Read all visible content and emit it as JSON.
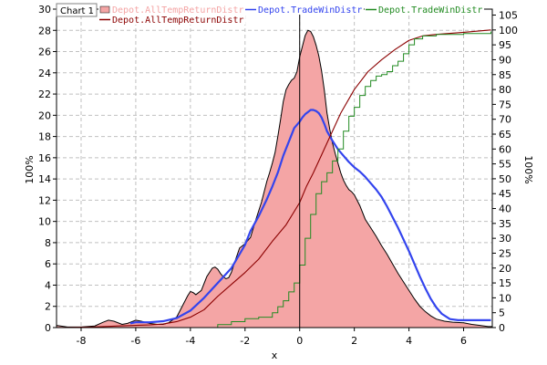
{
  "window": {
    "chart_tab_label": "Chart 1"
  },
  "chart_data": {
    "type": "area",
    "title": "",
    "xlabel": "x",
    "ylabel_left": "100%",
    "ylabel_right": "100%",
    "xlim": [
      -8.9,
      7.05
    ],
    "ylim_left": [
      0,
      30
    ],
    "ylim_right": [
      0,
      107
    ],
    "x_ticks": [
      -8,
      -6,
      -4,
      -2,
      0,
      2,
      4,
      6
    ],
    "y_ticks_left": [
      0,
      2,
      4,
      6,
      8,
      10,
      12,
      14,
      16,
      18,
      20,
      22,
      24,
      26,
      28,
      30
    ],
    "y_ticks_right": [
      0,
      5,
      10,
      15,
      20,
      25,
      30,
      35,
      40,
      45,
      50,
      55,
      60,
      65,
      70,
      75,
      80,
      85,
      90,
      95,
      100,
      105
    ],
    "grid": true,
    "legend_position": "top",
    "reference_line_x": 0,
    "colors": {
      "density_fill": "#f4a5a5",
      "density_line": "#000000",
      "all_temp_cdf": "#8b0000",
      "trade_win_density": "#3344ee",
      "trade_win_cdf": "#228b22",
      "grid": "#c0c0c0",
      "reference_line": "#000000"
    },
    "legend": [
      {
        "label": "Depot.AllTempReturnDistr",
        "style": "fill",
        "color": "#f4a5a5"
      },
      {
        "label": "Depot.TradeWinDistr",
        "style": "line",
        "color": "#3344ee"
      },
      {
        "label": "Depot.TradeWinDistr",
        "style": "line",
        "color": "#228b22"
      },
      {
        "label": "Depot.AllTempReturnDistr",
        "style": "line",
        "color": "#8b0000"
      }
    ],
    "series": [
      {
        "name": "Depot.AllTempReturnDistr",
        "kind": "area",
        "axis": "left",
        "x": [
          -8.9,
          -8.5,
          -8,
          -7.5,
          -7.2,
          -7,
          -6.8,
          -6.5,
          -6.3,
          -6,
          -5.8,
          -5.5,
          -5.2,
          -5,
          -4.8,
          -4.5,
          -4.3,
          -4.1,
          -4,
          -3.9,
          -3.8,
          -3.6,
          -3.4,
          -3.2,
          -3.1,
          -3,
          -2.9,
          -2.8,
          -2.7,
          -2.6,
          -2.5,
          -2.4,
          -2.2,
          -2,
          -1.8,
          -1.6,
          -1.4,
          -1.3,
          -1.2,
          -1.1,
          -1,
          -0.9,
          -0.8,
          -0.7,
          -0.6,
          -0.5,
          -0.4,
          -0.3,
          -0.2,
          -0.1,
          0,
          0.1,
          0.2,
          0.3,
          0.4,
          0.5,
          0.6,
          0.7,
          0.8,
          0.9,
          1,
          1.1,
          1.2,
          1.3,
          1.4,
          1.5,
          1.6,
          1.7,
          1.8,
          1.9,
          2,
          2.2,
          2.4,
          2.6,
          2.8,
          3,
          3.2,
          3.4,
          3.6,
          3.8,
          4,
          4.2,
          4.4,
          4.6,
          4.8,
          5,
          5.3,
          5.6,
          6,
          6.3,
          6.6,
          6.9,
          7.05
        ],
        "values": [
          0.2,
          0.05,
          0.05,
          0.15,
          0.5,
          0.7,
          0.6,
          0.3,
          0.4,
          0.7,
          0.6,
          0.4,
          0.3,
          0.3,
          0.45,
          1,
          2,
          3,
          3.4,
          3.3,
          3.1,
          3.5,
          4.8,
          5.6,
          5.7,
          5.5,
          5.1,
          4.8,
          4.6,
          4.7,
          5.2,
          6,
          7.5,
          7.9,
          8.5,
          10.2,
          11.8,
          12.8,
          13.8,
          14.6,
          15.5,
          16.5,
          18,
          19.6,
          21.3,
          22.4,
          22.9,
          23.3,
          23.5,
          24.1,
          25.5,
          26.5,
          27.5,
          28,
          27.9,
          27.4,
          26.6,
          25.6,
          24.2,
          22.4,
          20.2,
          18.7,
          17.4,
          16.4,
          15.5,
          14.6,
          13.9,
          13.4,
          13,
          12.8,
          12.5,
          11.5,
          10.2,
          9.4,
          8.6,
          7.7,
          6.9,
          6,
          5.1,
          4.3,
          3.5,
          2.7,
          2,
          1.5,
          1.1,
          0.8,
          0.6,
          0.5,
          0.45,
          0.3,
          0.2,
          0.1,
          0.1
        ]
      },
      {
        "name": "Depot.TradeWinDistr",
        "kind": "line",
        "axis": "left",
        "x": [
          -6.2,
          -6,
          -5.5,
          -5,
          -4.5,
          -4,
          -3.5,
          -3,
          -2.5,
          -2,
          -1.8,
          -1.5,
          -1.2,
          -1,
          -0.8,
          -0.6,
          -0.4,
          -0.2,
          0,
          0.1,
          0.2,
          0.3,
          0.4,
          0.5,
          0.6,
          0.7,
          0.8,
          0.9,
          1,
          1.2,
          1.4,
          1.6,
          1.8,
          2,
          2.2,
          2.4,
          2.6,
          2.8,
          3,
          3.2,
          3.4,
          3.6,
          3.8,
          4,
          4.2,
          4.4,
          4.6,
          4.8,
          5,
          5.2,
          5.5,
          5.8,
          6,
          6.2,
          6.5,
          6.8,
          7
        ],
        "values": [
          0.4,
          0.5,
          0.5,
          0.6,
          0.9,
          1.6,
          2.8,
          4.2,
          5.6,
          7.8,
          9.1,
          10.5,
          12.1,
          13.3,
          14.6,
          16.2,
          17.5,
          18.8,
          19.4,
          19.8,
          20.1,
          20.3,
          20.5,
          20.5,
          20.4,
          20.2,
          19.8,
          19.2,
          18.5,
          17.6,
          16.8,
          16.2,
          15.6,
          15.1,
          14.7,
          14.2,
          13.6,
          13,
          12.3,
          11.4,
          10.4,
          9.4,
          8.3,
          7.2,
          6,
          4.8,
          3.7,
          2.7,
          1.9,
          1.3,
          0.8,
          0.7,
          0.7,
          0.7,
          0.7,
          0.7,
          0.7
        ]
      },
      {
        "name": "Depot.AllTempReturnDistr",
        "kind": "line",
        "axis": "right",
        "x": [
          -8.9,
          -7.5,
          -6.5,
          -5.5,
          -5,
          -4.5,
          -4,
          -3.5,
          -3,
          -2.5,
          -2,
          -1.5,
          -1,
          -0.5,
          0,
          0.25,
          0.5,
          0.75,
          1,
          1.25,
          1.5,
          2,
          2.5,
          3,
          3.5,
          4,
          4.5,
          5,
          6,
          7
        ],
        "values": [
          0,
          0.2,
          0.6,
          0.9,
          1.2,
          2,
          3.5,
          6,
          10.5,
          14.5,
          18.5,
          23,
          29,
          34.5,
          42,
          47.5,
          52,
          57,
          62,
          67,
          72,
          80,
          86,
          90,
          93.5,
          96.5,
          98,
          98.5,
          99.2,
          100
        ]
      },
      {
        "name": "Depot.TradeWinDistr",
        "kind": "step",
        "axis": "right",
        "x": [
          -3.5,
          -3,
          -2.5,
          -2,
          -1.5,
          -1,
          -0.8,
          -0.6,
          -0.4,
          -0.2,
          0,
          0.2,
          0.4,
          0.6,
          0.8,
          1,
          1.2,
          1.4,
          1.6,
          1.8,
          2,
          2.2,
          2.4,
          2.6,
          2.8,
          3,
          3.2,
          3.4,
          3.6,
          3.8,
          4,
          4.2,
          4.5,
          5,
          6,
          7
        ],
        "values": [
          0,
          1,
          2,
          3,
          3.5,
          5,
          7,
          9,
          12,
          15,
          21,
          30,
          38,
          45,
          49,
          52,
          56,
          60,
          66,
          71,
          74,
          78,
          81,
          83,
          84.5,
          85,
          86,
          88,
          89.5,
          92,
          95,
          97,
          98,
          98.5,
          98.8,
          99.5
        ]
      }
    ]
  }
}
